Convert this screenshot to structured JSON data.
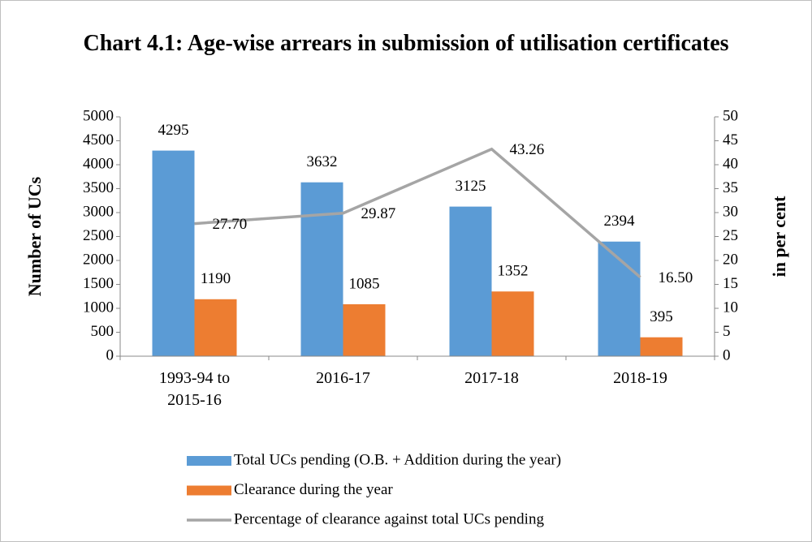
{
  "chart_data": {
    "type": "bar",
    "title": "Chart 4.1: Age-wise arrears in submission of utilisation certificates",
    "ylabel": "Number of UCs",
    "y2label": "in per cent",
    "categories": [
      "1993-94 to 2015-16",
      "2016-17",
      "2017-18",
      "2018-19"
    ],
    "series": [
      {
        "name": "Total UCs pending (O.B. + Addition during the year)",
        "type": "bar",
        "color": "#5b9bd5",
        "values": [
          4295,
          3632,
          3125,
          2394
        ]
      },
      {
        "name": "Clearance during the year",
        "type": "bar",
        "color": "#ed7d31",
        "values": [
          1190,
          1085,
          1352,
          395
        ]
      },
      {
        "name": "Percentage of clearance against total UCs pending",
        "type": "line",
        "axis": "y2",
        "color": "#a5a5a5",
        "values": [
          27.7,
          29.87,
          43.26,
          16.5
        ],
        "value_labels": [
          "27.70",
          "29.87",
          "43.26",
          "16.50"
        ]
      }
    ],
    "ylim": [
      0,
      5000
    ],
    "yticks": [
      0,
      500,
      1000,
      1500,
      2000,
      2500,
      3000,
      3500,
      4000,
      4500,
      5000
    ],
    "y2lim": [
      0,
      50
    ],
    "y2ticks": [
      0,
      5,
      10,
      15,
      20,
      25,
      30,
      35,
      40,
      45,
      50
    ],
    "grid": false,
    "legend": "bottom"
  }
}
